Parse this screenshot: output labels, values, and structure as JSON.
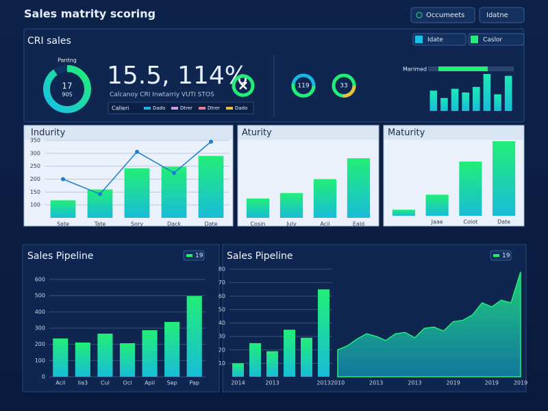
{
  "header": {
    "title": "Sales matrity scoring",
    "buttons": [
      "Occumeets",
      "Idatne"
    ]
  },
  "crm": {
    "title": "CRI sales",
    "donut": {
      "label": "Pantng",
      "value": "17",
      "sub": "90S"
    },
    "kpi": "15.5, 114%.",
    "subtitle": "Calcanoy CRI Inwtarriy VUTI STOS",
    "legend_title": "Calleri",
    "legend": [
      {
        "name": "Dado",
        "color": "#19b6e0"
      },
      {
        "name": "Dtrer",
        "color": "#c9a0e8"
      },
      {
        "name": "Dtrer",
        "color": "#e87a9a"
      },
      {
        "name": "Dado",
        "color": "#e8c040"
      }
    ],
    "rings": [
      "119",
      "33"
    ],
    "tabs": [
      "Idate",
      "Caslor"
    ]
  },
  "chart_data": [
    {
      "type": "bar",
      "title": "Marimed",
      "values": [
        55,
        35,
        60,
        50,
        65,
        100,
        45,
        95
      ],
      "ylim": [
        0,
        100
      ],
      "color": "#1de9b6"
    },
    {
      "type": "bar",
      "title": "Indurity",
      "categories": [
        "Sate",
        "Tate",
        "Sory",
        "Dack",
        "Date"
      ],
      "series": [
        {
          "type": "bar",
          "color": "#22ee77",
          "values": [
            118,
            160,
            242,
            248,
            290
          ]
        },
        {
          "type": "line",
          "color": "#1a7fd0",
          "values": [
            200,
            142,
            306,
            224,
            345
          ]
        }
      ],
      "ylim": [
        50,
        350
      ],
      "yticks": [
        100,
        150,
        200,
        250,
        300,
        350
      ],
      "grid": true
    },
    {
      "type": "bar",
      "title": "Aturity",
      "categories": [
        "Cosin",
        "July",
        "Acil",
        "Eald"
      ],
      "values": [
        25,
        32,
        50,
        77
      ],
      "ylim": [
        0,
        100
      ],
      "color": "#22ee77"
    },
    {
      "type": "bar",
      "title": "Maturity",
      "categories": [
        null,
        "Jaae",
        "Colot",
        "Date"
      ],
      "values": [
        8,
        28,
        72,
        99
      ],
      "ylim": [
        0,
        100
      ],
      "color": "#22ee77"
    },
    {
      "type": "bar",
      "title": "Sales Pipeline",
      "badge": "19",
      "categories": [
        "Acil",
        "Ila3",
        "Cul",
        "Ocl",
        "Apil",
        "Sep",
        "Pap"
      ],
      "values": [
        236,
        211,
        266,
        207,
        287,
        338,
        498
      ],
      "ylim": [
        0,
        600
      ],
      "yticks": [
        0,
        100,
        200,
        300,
        400,
        500,
        600
      ],
      "grid": true,
      "color": "#22ee77"
    },
    {
      "type": "bar",
      "title": "Sales Pipeline",
      "badge": "19",
      "categories": [
        "2014",
        null,
        "2013",
        null,
        null,
        "2013"
      ],
      "values": [
        10,
        25,
        19,
        35,
        29,
        65
      ],
      "ylim": [
        0,
        80
      ],
      "yticks": [
        10,
        20,
        30,
        40,
        50,
        60,
        70,
        80
      ],
      "grid": true,
      "color": "#22ee77"
    },
    {
      "type": "area",
      "categories": [
        "2010",
        null,
        null,
        null,
        "2013",
        null,
        null,
        null,
        "2013",
        null,
        null,
        null,
        "2019",
        null,
        null,
        null,
        "2019",
        null,
        null,
        "2019"
      ],
      "values": [
        20,
        23,
        28,
        32,
        30,
        27,
        32,
        33,
        29,
        36,
        37,
        34,
        41,
        42,
        46,
        55,
        52,
        57,
        55,
        78
      ],
      "ylim": [
        0,
        80
      ],
      "color": "#22ee77"
    }
  ]
}
